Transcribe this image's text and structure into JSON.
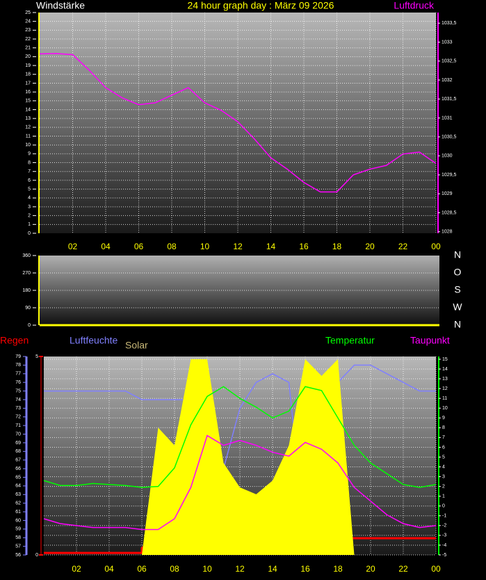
{
  "chart_data": [
    {
      "type": "line",
      "title": "24 hour graph day : März 09 2026",
      "y_label": "Windstärke",
      "x": [
        0,
        1,
        2,
        3,
        4,
        5,
        6,
        7,
        8,
        9,
        10,
        11,
        12,
        13,
        14,
        15,
        16,
        17,
        18,
        19,
        20,
        21,
        22,
        23,
        24
      ],
      "xlim": [
        0,
        24
      ],
      "xticks": [
        {
          "value": 2,
          "label": "02"
        },
        {
          "value": 4,
          "label": "04"
        },
        {
          "value": 6,
          "label": "06"
        },
        {
          "value": 8,
          "label": "08"
        },
        10,
        12,
        14,
        16,
        18,
        20,
        22,
        {
          "value": 24,
          "label": "00"
        }
      ],
      "ylim": [
        0,
        25
      ],
      "yticks": [
        0,
        1,
        2,
        3,
        4,
        5,
        6,
        7,
        8,
        9,
        10,
        11,
        12,
        13,
        14,
        15,
        16,
        17,
        18,
        19,
        20,
        21,
        22,
        23,
        24,
        25
      ],
      "y2lim": [
        1027.96,
        1033.78
      ],
      "y2ticks": [
        1028,
        {
          "value": 1028.5,
          "label": "1028,5"
        },
        1029,
        {
          "value": 1029.5,
          "label": "1029,5"
        },
        1030,
        {
          "value": 1030.5,
          "label": "1030,5"
        },
        1031,
        {
          "value": 1031.5,
          "label": "1031,5"
        },
        1032,
        {
          "value": 1032.5,
          "label": "1032,5"
        },
        1033,
        {
          "value": 1033.5,
          "label": "1033,5"
        }
      ],
      "grid": true,
      "series": [
        {
          "name": "Luftdruck",
          "color": "#ff00ff",
          "axis": "y2",
          "values": [
            1032.69,
            1032.7,
            1032.67,
            1032.26,
            1031.8,
            1031.53,
            1031.35,
            1031.4,
            1031.6,
            1031.8,
            1031.4,
            1031.2,
            1030.9,
            1030.45,
            1029.95,
            1029.65,
            1029.3,
            1029.05,
            1029.05,
            1029.5,
            1029.65,
            1029.75,
            1030.05,
            1030.1,
            1029.8
          ]
        }
      ]
    },
    {
      "type": "line",
      "x": [
        0,
        24
      ],
      "xlim": [
        0,
        24
      ],
      "ylim": [
        0,
        360
      ],
      "yticks": [
        0,
        90,
        180,
        270,
        360
      ],
      "direction_labels": [
        "N",
        "W",
        "S",
        "O",
        "N"
      ],
      "grid": true,
      "series": [
        {
          "color": "#ffff00",
          "values": [
            0,
            0
          ]
        }
      ]
    },
    {
      "type": "line",
      "x": [
        0,
        1,
        2,
        3,
        4,
        5,
        6,
        7,
        8,
        9,
        10,
        11,
        12,
        13,
        14,
        15,
        16,
        17,
        18,
        19,
        20,
        21,
        22,
        23,
        24
      ],
      "xlim": [
        0,
        24
      ],
      "xticks": [
        {
          "value": 2,
          "label": "02"
        },
        {
          "value": 4,
          "label": "04"
        },
        {
          "value": 6,
          "label": "06"
        },
        {
          "value": 8,
          "label": "08"
        },
        10,
        12,
        14,
        16,
        18,
        20,
        22,
        {
          "value": 24,
          "label": "00"
        }
      ],
      "ylim": [
        56,
        79
      ],
      "yticks": [
        56,
        57,
        58,
        59,
        60,
        61,
        62,
        63,
        64,
        65,
        66,
        67,
        68,
        69,
        70,
        71,
        72,
        73,
        74,
        75,
        76,
        77,
        78,
        79
      ],
      "y2lim": [
        -5,
        15.28
      ],
      "y2ticks": [
        -5,
        -4,
        -3,
        -2,
        -1,
        0,
        1,
        2,
        3,
        4,
        5,
        6,
        7,
        8,
        9,
        10,
        11,
        12,
        13,
        14,
        15
      ],
      "y3lim": [
        0,
        5
      ],
      "y3ticks": [
        0,
        5
      ],
      "grid": true,
      "series": [
        {
          "name": "Regen",
          "color": "#ff0000",
          "axis": "y3",
          "step": true,
          "values": [
            0.05,
            0.05,
            0.05,
            0.05,
            0.05,
            0.05,
            0.19,
            0.19,
            0.19,
            0.19,
            0.19,
            0.19,
            0.19,
            0.19,
            0.42,
            0.42,
            0.42,
            0.42,
            0.42,
            0.42,
            0.42,
            0.42,
            0.42,
            0.42,
            0.42
          ]
        },
        {
          "name": "Luftfeuchte",
          "color": "#8080ff",
          "values": [
            75,
            75,
            75,
            75,
            75,
            75,
            74,
            74,
            74,
            74,
            76.5,
            66,
            73,
            76,
            77,
            76,
            58,
            66,
            76,
            78,
            78,
            77,
            76,
            75,
            75
          ]
        },
        {
          "name": "Solar",
          "color": "#ffff00",
          "axis": "y2",
          "area": true,
          "values": [
            -5,
            -5,
            -5,
            -5,
            -5,
            -5,
            -5,
            8,
            6.2,
            15,
            15,
            4.4,
            1.9,
            1.2,
            2.6,
            6.2,
            15,
            13.3,
            15,
            -5,
            -5,
            -5,
            -5,
            -5,
            -5
          ]
        },
        {
          "name": "Temperatur",
          "color": "#00ff00",
          "axis": "y2",
          "values": [
            2.6,
            2.1,
            2.1,
            2.3,
            2.2,
            2.1,
            1.9,
            2.0,
            3.9,
            8.3,
            11.2,
            12.2,
            11,
            10.1,
            9,
            9.7,
            12.2,
            11.8,
            9,
            6.2,
            4.4,
            3.3,
            2.2,
            1.9,
            2.2
          ]
        },
        {
          "name": "Taupunkt",
          "color": "#ff00ff",
          "axis": "y2",
          "values": [
            -1.3,
            -1.8,
            -2,
            -2.2,
            -2.2,
            -2.2,
            -2.4,
            -2.4,
            -1.3,
            1.9,
            7.2,
            6.2,
            6.7,
            6.2,
            5.5,
            5.1,
            6.5,
            5.8,
            4.4,
            1.9,
            0.5,
            -0.9,
            -1.8,
            -2.2,
            -2
          ]
        }
      ]
    }
  ]
}
